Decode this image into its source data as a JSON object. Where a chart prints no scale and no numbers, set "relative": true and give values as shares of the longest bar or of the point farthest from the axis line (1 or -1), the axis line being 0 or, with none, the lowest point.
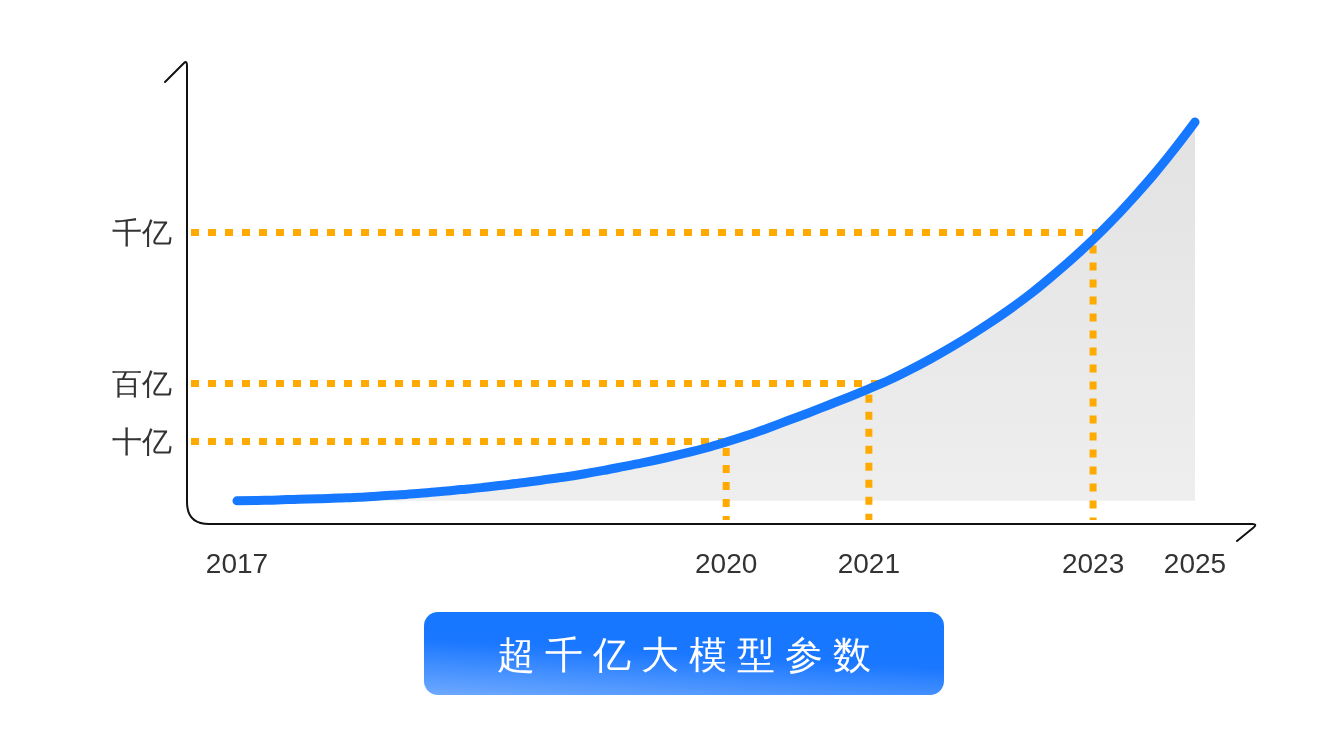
{
  "chart_data": {
    "type": "area",
    "title": "超千亿大模型参数",
    "relative": true,
    "categories": [
      "2017",
      null,
      null,
      null,
      null,
      null,
      null,
      null,
      null,
      null,
      null,
      null,
      null,
      null,
      null,
      null,
      null,
      null,
      null,
      null,
      null,
      null,
      null,
      null,
      "2020",
      null,
      null,
      null,
      null,
      null,
      null,
      "2021",
      null,
      null,
      null,
      null,
      null,
      null,
      null,
      null,
      null,
      null,
      "2023",
      null,
      null,
      null,
      null,
      "2025"
    ],
    "series": [
      {
        "color": "#1677ff",
        "values": [
          0.053,
          0.054,
          0.055,
          0.057,
          0.058,
          0.06,
          0.062,
          0.065,
          0.068,
          0.072,
          0.076,
          0.081,
          0.086,
          0.092,
          0.098,
          0.105,
          0.112,
          0.12,
          0.129,
          0.139,
          0.149,
          0.16,
          0.172,
          0.185,
          0.2,
          0.216,
          0.234,
          0.253,
          0.272,
          0.292,
          0.312,
          0.333,
          0.355,
          0.38,
          0.407,
          0.436,
          0.467,
          0.5,
          0.535,
          0.573,
          0.615,
          0.659,
          0.706,
          0.757,
          0.812,
          0.87,
          0.933,
          1.0
        ]
      }
    ],
    "ref_lines": [
      {
        "axis": "y",
        "value": 0.201,
        "label": "十亿",
        "color": "#ffaa00",
        "line_style": "dotted"
      },
      {
        "axis": "y",
        "value": 0.346,
        "label": "百亿",
        "color": "#ffaa00",
        "line_style": "dotted"
      },
      {
        "axis": "y",
        "value": 0.724,
        "label": "千亿",
        "color": "#ffaa00",
        "line_style": "dotted"
      },
      {
        "axis": "x",
        "value": "2020",
        "color": "#ffaa00",
        "line_style": "dotted"
      },
      {
        "axis": "x",
        "value": "2021",
        "color": "#ffaa00",
        "line_style": "dotted"
      },
      {
        "axis": "x",
        "value": "2023",
        "color": "#ffaa00",
        "line_style": "dotted"
      }
    ]
  }
}
